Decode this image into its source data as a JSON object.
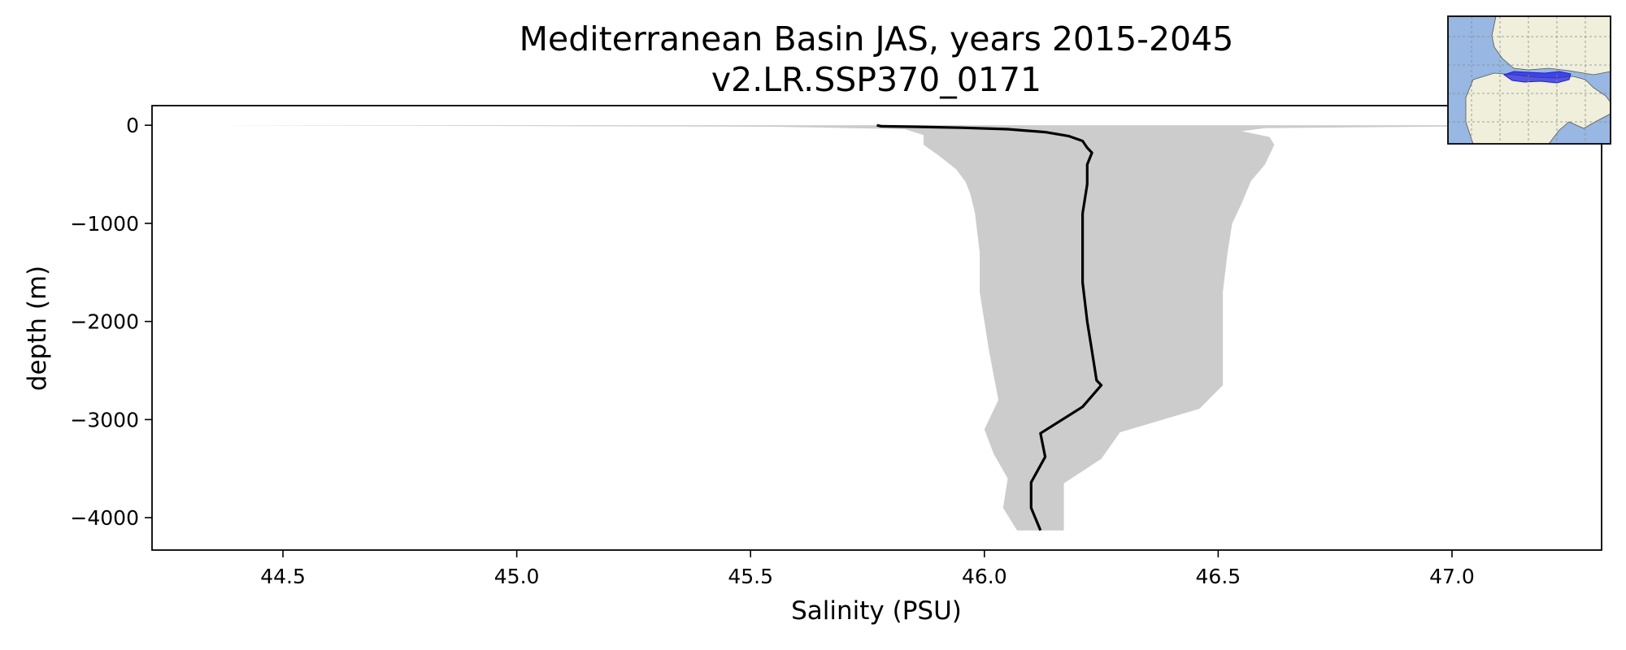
{
  "chart_data": {
    "type": "line",
    "title": "Mediterranean Basin JAS, years 2015-2045",
    "subtitle": "v2.LR.SSP370_0171",
    "xlabel": "Salinity (PSU)",
    "ylabel": "depth (m)",
    "xlim": [
      44.22,
      47.32
    ],
    "ylim": [
      -4330,
      200
    ],
    "xticks": [
      44.5,
      45.0,
      45.5,
      46.0,
      46.5,
      47.0
    ],
    "xtick_labels": [
      "44.5",
      "45.0",
      "45.5",
      "46.0",
      "46.5",
      "47.0"
    ],
    "yticks": [
      0,
      -1000,
      -2000,
      -3000,
      -4000
    ],
    "ytick_labels": [
      "0",
      "−1000",
      "−2000",
      "−3000",
      "−4000"
    ],
    "grid": false,
    "series": [
      {
        "kind": "mean-profile",
        "color": "#000000",
        "points": [
          [
            45.77,
            0
          ],
          [
            45.78,
            -10
          ],
          [
            45.85,
            -15
          ],
          [
            45.95,
            -25
          ],
          [
            46.05,
            -40
          ],
          [
            46.13,
            -70
          ],
          [
            46.18,
            -110
          ],
          [
            46.21,
            -160
          ],
          [
            46.22,
            -230
          ],
          [
            46.23,
            -280
          ],
          [
            46.22,
            -400
          ],
          [
            46.22,
            -600
          ],
          [
            46.21,
            -900
          ],
          [
            46.21,
            -1300
          ],
          [
            46.21,
            -1600
          ],
          [
            46.22,
            -2000
          ],
          [
            46.23,
            -2300
          ],
          [
            46.24,
            -2600
          ],
          [
            46.25,
            -2650
          ],
          [
            46.21,
            -2870
          ],
          [
            46.12,
            -3140
          ],
          [
            46.13,
            -3380
          ],
          [
            46.1,
            -3640
          ],
          [
            46.1,
            -3900
          ],
          [
            46.12,
            -4130
          ]
        ]
      }
    ],
    "band": {
      "kind": "range",
      "color": "#cccccc",
      "left": [
        [
          44.35,
          0
        ],
        [
          45.55,
          -15
        ],
        [
          45.83,
          -40
        ],
        [
          45.87,
          -100
        ],
        [
          45.87,
          -200
        ],
        [
          45.9,
          -300
        ],
        [
          45.94,
          -450
        ],
        [
          45.96,
          -580
        ],
        [
          45.97,
          -700
        ],
        [
          45.98,
          -900
        ],
        [
          45.99,
          -1300
        ],
        [
          45.99,
          -1700
        ],
        [
          46.0,
          -2000
        ],
        [
          46.01,
          -2300
        ],
        [
          46.02,
          -2550
        ],
        [
          46.03,
          -2800
        ],
        [
          46.0,
          -3100
        ],
        [
          46.02,
          -3350
        ],
        [
          46.05,
          -3600
        ],
        [
          46.04,
          -3900
        ],
        [
          46.07,
          -4130
        ]
      ],
      "right": [
        [
          47.3,
          0
        ],
        [
          46.6,
          -30
        ],
        [
          46.55,
          -60
        ],
        [
          46.61,
          -120
        ],
        [
          46.62,
          -200
        ],
        [
          46.6,
          -400
        ],
        [
          46.57,
          -570
        ],
        [
          46.55,
          -800
        ],
        [
          46.53,
          -1000
        ],
        [
          46.52,
          -1300
        ],
        [
          46.51,
          -1700
        ],
        [
          46.51,
          -2000
        ],
        [
          46.51,
          -2500
        ],
        [
          46.51,
          -2650
        ],
        [
          46.46,
          -2890
        ],
        [
          46.29,
          -3130
        ],
        [
          46.25,
          -3400
        ],
        [
          46.17,
          -3650
        ],
        [
          46.17,
          -4130
        ]
      ]
    },
    "inset_map": {
      "kind": "region-locator",
      "ocean_color": "#98b7e2",
      "land_color": "#efefdb",
      "region_color": "#2020dd"
    }
  }
}
